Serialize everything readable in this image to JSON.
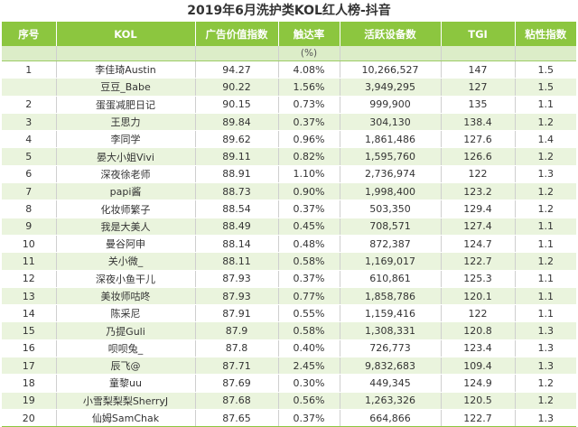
{
  "title": "2019年6月洗护类KOL红人榜-抖音",
  "header": [
    "序号",
    "KOL",
    "广告价值指数",
    "触达率",
    "活跃设备数",
    "TGI",
    "粘性指数"
  ],
  "subheader": [
    "",
    "",
    "",
    "(%)",
    "",
    "",
    ""
  ],
  "colors": {
    "header_bg": "#8cc63f",
    "subheader_bg": "#dcedc8",
    "stripe": "#eaf4dd"
  },
  "chart_data": {
    "type": "table",
    "title": "2019年6月洗护类KOL红人榜-抖音",
    "columns": [
      "序号",
      "KOL",
      "广告价值指数",
      "触达率",
      "活跃设备数",
      "TGI",
      "粘性指数"
    ],
    "rows": [
      [
        "1",
        "李佳琦Austin",
        "94.27",
        "4.08%",
        "10,266,527",
        "147",
        "1.5"
      ],
      [
        "",
        "豆豆_Babe",
        "90.22",
        "1.56%",
        "3,949,295",
        "127",
        "1.5"
      ],
      [
        "2",
        "蛋蛋减肥日记",
        "90.15",
        "0.73%",
        "999,900",
        "135",
        "1.1"
      ],
      [
        "3",
        "王思力",
        "89.84",
        "0.37%",
        "304,130",
        "138.4",
        "1.2"
      ],
      [
        "4",
        "李同学",
        "89.62",
        "0.96%",
        "1,861,486",
        "127.6",
        "1.4"
      ],
      [
        "5",
        "晏大小姐Vivi",
        "89.11",
        "0.82%",
        "1,595,760",
        "126.6",
        "1.2"
      ],
      [
        "6",
        "深夜徐老师",
        "88.91",
        "1.10%",
        "2,736,974",
        "122",
        "1.3"
      ],
      [
        "7",
        "papi酱",
        "88.73",
        "0.90%",
        "1,998,400",
        "123.2",
        "1.2"
      ],
      [
        "8",
        "化妆师繁子",
        "88.54",
        "0.37%",
        "503,350",
        "129.4",
        "1.2"
      ],
      [
        "9",
        "我是大美人",
        "88.49",
        "0.45%",
        "708,571",
        "127.4",
        "1.1"
      ],
      [
        "10",
        "曼谷阿申",
        "88.14",
        "0.48%",
        "872,387",
        "124.7",
        "1.1"
      ],
      [
        "11",
        "关小微_",
        "88.11",
        "0.58%",
        "1,169,017",
        "122.7",
        "1.2"
      ],
      [
        "12",
        "深夜小鱼干儿",
        "87.93",
        "0.37%",
        "610,861",
        "125.3",
        "1.1"
      ],
      [
        "13",
        "美妆师咕咚",
        "87.93",
        "0.77%",
        "1,858,786",
        "120.1",
        "1.1"
      ],
      [
        "14",
        "陈采尼",
        "87.91",
        "0.55%",
        "1,159,416",
        "122",
        "1.1"
      ],
      [
        "15",
        "乃提Guli",
        "87.9",
        "0.58%",
        "1,308,331",
        "120.8",
        "1.3"
      ],
      [
        "16",
        "呗呗兔_",
        "87.8",
        "0.40%",
        "726,773",
        "123.4",
        "1.3"
      ],
      [
        "17",
        "辰飞@",
        "87.71",
        "2.45%",
        "9,832,683",
        "109.4",
        "1.3"
      ],
      [
        "18",
        "童黎uu",
        "87.69",
        "0.30%",
        "449,345",
        "124.9",
        "1.2"
      ],
      [
        "19",
        "小雪梨梨梨SherryJ",
        "87.68",
        "0.56%",
        "1,263,326",
        "120.5",
        "1.2"
      ],
      [
        "20",
        "仙姆SamChak",
        "87.65",
        "0.37%",
        "664,866",
        "122.7",
        "1.3"
      ]
    ]
  }
}
